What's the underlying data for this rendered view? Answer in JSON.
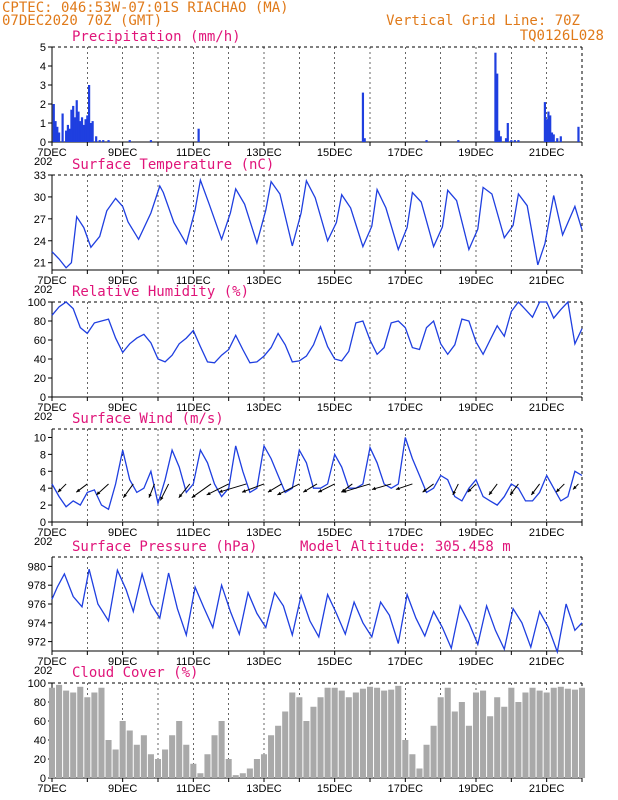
{
  "header": {
    "line1": "CPTEC:   046:53W-07:01S   RIACHAO (MA)",
    "line2": "07DEC2020 70Z (GMT)",
    "right1": "Vertical Grid Line: 70Z",
    "right2": "TQ0126L028"
  },
  "colors": {
    "header": "#e07a1a",
    "panel_title": "#e0157a",
    "series": "#1f3fe0",
    "cloud": "#a9a9a9",
    "wind_arrow": "#000000"
  },
  "x_axis": {
    "range_days": [
      7,
      22
    ],
    "tick_labels": [
      {
        "day": 7,
        "label": "7DEC"
      },
      {
        "day": 9,
        "label": "9DEC"
      },
      {
        "day": 11,
        "label": "11DEC"
      },
      {
        "day": 13,
        "label": "13DEC"
      },
      {
        "day": 15,
        "label": "15DEC"
      },
      {
        "day": 17,
        "label": "17DEC"
      },
      {
        "day": 19,
        "label": "19DEC"
      },
      {
        "day": 21,
        "label": "21DEC"
      }
    ],
    "year_stub": "202"
  },
  "chart_data": [
    {
      "id": "precip",
      "type": "bar",
      "title": "Precipitation (mm/h)",
      "ylim": [
        0,
        5
      ],
      "yticks": [
        0,
        1,
        2,
        3,
        4,
        5
      ],
      "grid": "dashed vertical at day boundaries, dashed horizontal top",
      "x": [
        7.05,
        7.1,
        7.15,
        7.2,
        7.3,
        7.4,
        7.45,
        7.5,
        7.55,
        7.6,
        7.65,
        7.7,
        7.75,
        7.8,
        7.85,
        7.9,
        7.95,
        8.0,
        8.05,
        8.1,
        8.15,
        8.25,
        8.35,
        8.45,
        8.6,
        9.2,
        9.8,
        11.15,
        15.8,
        15.85,
        17.6,
        18.5,
        19.55,
        19.6,
        19.65,
        19.7,
        19.85,
        19.9,
        20.0,
        20.1,
        20.2,
        20.95,
        21.0,
        21.05,
        21.1,
        21.15,
        21.2,
        21.3,
        21.4,
        21.9
      ],
      "values": [
        2.0,
        1.1,
        0.8,
        0.5,
        1.5,
        0.6,
        0.9,
        0.7,
        1.7,
        1.9,
        1.3,
        2.2,
        1.6,
        1.1,
        1.3,
        0.9,
        1.2,
        1.4,
        3.0,
        1.0,
        1.1,
        0.3,
        0.1,
        0.1,
        0.1,
        0.1,
        0.1,
        0.7,
        2.6,
        0.2,
        0.1,
        0.1,
        4.7,
        3.6,
        0.6,
        0.3,
        0.2,
        1.0,
        0.1,
        0.1,
        0.1,
        2.1,
        1.2,
        1.6,
        1.4,
        0.5,
        0.4,
        0.2,
        0.3,
        0.8
      ]
    },
    {
      "id": "temp",
      "type": "line",
      "title": "Surface Temperature (nC)",
      "ylim": [
        20,
        33
      ],
      "yticks": [
        21,
        24,
        27,
        30,
        33
      ],
      "x": [
        7.0,
        7.2,
        7.4,
        7.55,
        7.7,
        7.9,
        8.1,
        8.35,
        8.55,
        8.8,
        9.0,
        9.15,
        9.45,
        9.8,
        10.05,
        10.15,
        10.45,
        10.8,
        11.05,
        11.2,
        11.45,
        11.8,
        12.05,
        12.2,
        12.45,
        12.8,
        13.05,
        13.2,
        13.45,
        13.8,
        14.05,
        14.2,
        14.45,
        14.8,
        15.05,
        15.2,
        15.45,
        15.8,
        16.05,
        16.2,
        16.45,
        16.8,
        17.05,
        17.2,
        17.45,
        17.8,
        18.05,
        18.2,
        18.45,
        18.8,
        19.05,
        19.2,
        19.45,
        19.8,
        20.05,
        20.2,
        20.45,
        20.75,
        20.95,
        21.2,
        21.45,
        21.8,
        22.0
      ],
      "values": [
        22.5,
        21.5,
        20.3,
        21.0,
        27.3,
        25.8,
        23.1,
        24.6,
        28.1,
        29.8,
        28.7,
        26.6,
        24.2,
        27.8,
        31.5,
        30.6,
        26.5,
        23.6,
        28.2,
        32.3,
        29.0,
        24.2,
        27.8,
        31.1,
        29.0,
        23.7,
        28.2,
        32.1,
        30.4,
        23.3,
        27.8,
        32.2,
        29.9,
        24.0,
        26.5,
        30.3,
        28.5,
        23.2,
        26.0,
        31.0,
        28.5,
        22.8,
        25.8,
        30.6,
        29.3,
        23.2,
        25.9,
        30.9,
        29.5,
        22.8,
        25.6,
        31.3,
        30.4,
        24.4,
        26.1,
        30.4,
        28.8,
        20.7,
        23.6,
        30.2,
        24.8,
        28.7,
        25.5
      ]
    },
    {
      "id": "rh",
      "type": "line",
      "title": "Relative Humidity (%)",
      "ylim": [
        0,
        100
      ],
      "yticks": [
        0,
        20,
        40,
        60,
        80,
        100
      ],
      "x": [
        7.0,
        7.2,
        7.4,
        7.6,
        7.8,
        8.0,
        8.2,
        8.4,
        8.6,
        8.8,
        9.0,
        9.2,
        9.4,
        9.6,
        9.8,
        10.0,
        10.2,
        10.4,
        10.6,
        10.8,
        11.0,
        11.2,
        11.4,
        11.6,
        11.8,
        12.0,
        12.2,
        12.4,
        12.6,
        12.8,
        13.0,
        13.2,
        13.4,
        13.6,
        13.8,
        14.0,
        14.2,
        14.4,
        14.6,
        14.8,
        15.0,
        15.2,
        15.4,
        15.6,
        15.8,
        16.0,
        16.2,
        16.4,
        16.6,
        16.8,
        17.0,
        17.2,
        17.4,
        17.6,
        17.8,
        18.0,
        18.2,
        18.4,
        18.6,
        18.8,
        19.0,
        19.2,
        19.4,
        19.6,
        19.8,
        20.0,
        20.2,
        20.4,
        20.6,
        20.8,
        21.0,
        21.2,
        21.4,
        21.6,
        21.8,
        22.0
      ],
      "values": [
        86,
        95,
        100,
        93,
        73,
        67,
        78,
        80,
        82,
        62,
        47,
        56,
        62,
        66,
        57,
        40,
        37,
        44,
        56,
        62,
        70,
        53,
        37,
        36,
        44,
        50,
        65,
        50,
        36,
        37,
        43,
        52,
        67,
        55,
        37,
        38,
        43,
        55,
        74,
        53,
        40,
        38,
        48,
        78,
        80,
        60,
        45,
        52,
        78,
        80,
        73,
        52,
        50,
        73,
        80,
        56,
        45,
        55,
        82,
        80,
        58,
        45,
        60,
        75,
        64,
        90,
        100,
        92,
        84,
        100,
        100,
        83,
        92,
        100,
        56,
        72
      ]
    },
    {
      "id": "wind",
      "type": "line",
      "title": "Surface Wind (m/s)",
      "ylim": [
        0,
        11
      ],
      "yticks": [
        0,
        2,
        4,
        6,
        8,
        10
      ],
      "speed_x": [
        7.0,
        7.2,
        7.4,
        7.6,
        7.8,
        8.0,
        8.2,
        8.4,
        8.6,
        8.8,
        9.0,
        9.2,
        9.4,
        9.6,
        9.8,
        10.0,
        10.2,
        10.4,
        10.6,
        10.8,
        11.0,
        11.2,
        11.4,
        11.6,
        11.8,
        12.0,
        12.2,
        12.4,
        12.6,
        12.8,
        13.0,
        13.2,
        13.4,
        13.6,
        13.8,
        14.0,
        14.2,
        14.4,
        14.6,
        14.8,
        15.0,
        15.2,
        15.4,
        15.6,
        15.8,
        16.0,
        16.2,
        16.4,
        16.6,
        16.8,
        17.0,
        17.2,
        17.4,
        17.6,
        17.8,
        18.0,
        18.2,
        18.4,
        18.6,
        18.8,
        19.0,
        19.2,
        19.4,
        19.6,
        19.8,
        20.0,
        20.2,
        20.4,
        20.6,
        20.8,
        21.0,
        21.2,
        21.4,
        21.6,
        21.8,
        22.0
      ],
      "speed_values": [
        4.5,
        3.0,
        1.8,
        2.5,
        2.0,
        3.5,
        3.8,
        2.0,
        1.5,
        4.5,
        8.5,
        5.0,
        3.5,
        4.0,
        6.0,
        2.2,
        5.0,
        8.5,
        6.5,
        3.5,
        4.5,
        8.5,
        7.0,
        4.5,
        3.0,
        4.0,
        9.0,
        6.0,
        3.5,
        4.0,
        9.0,
        7.5,
        5.5,
        3.5,
        4.0,
        8.5,
        7.0,
        4.0,
        4.0,
        4.5,
        8.0,
        6.5,
        4.0,
        4.0,
        4.5,
        8.8,
        7.0,
        4.5,
        4.0,
        4.5,
        10.0,
        7.5,
        5.5,
        3.5,
        4.0,
        5.5,
        5.0,
        3.0,
        2.5,
        4.0,
        5.0,
        3.0,
        2.5,
        2.0,
        3.0,
        4.5,
        4.0,
        2.5,
        2.5,
        3.5,
        5.5,
        4.0,
        2.5,
        3.0,
        6.0,
        5.5
      ],
      "arrows": [
        {
          "day": 7.4,
          "u": -1.5,
          "v": -1.5
        },
        {
          "day": 8.0,
          "u": -2.0,
          "v": -1.5
        },
        {
          "day": 8.6,
          "u": -2.2,
          "v": -2.0
        },
        {
          "day": 9.3,
          "u": -1.8,
          "v": -2.5
        },
        {
          "day": 9.9,
          "u": -1.0,
          "v": -2.5
        },
        {
          "day": 10.3,
          "u": -1.5,
          "v": -3.0
        },
        {
          "day": 10.9,
          "u": -2.0,
          "v": -2.5
        },
        {
          "day": 11.5,
          "u": -3.5,
          "v": -2.5
        },
        {
          "day": 12.0,
          "u": -4.0,
          "v": -2.0
        },
        {
          "day": 12.5,
          "u": -5.0,
          "v": -1.5
        },
        {
          "day": 13.0,
          "u": -4.0,
          "v": -1.5
        },
        {
          "day": 13.5,
          "u": -2.5,
          "v": -1.5
        },
        {
          "day": 14.0,
          "u": -4.0,
          "v": -2.0
        },
        {
          "day": 14.5,
          "u": -2.5,
          "v": -1.5
        },
        {
          "day": 15.0,
          "u": -3.0,
          "v": -1.5
        },
        {
          "day": 15.5,
          "u": -2.0,
          "v": -1.5
        },
        {
          "day": 16.0,
          "u": -5.0,
          "v": -1.5
        },
        {
          "day": 16.6,
          "u": -3.5,
          "v": -1.0
        },
        {
          "day": 17.2,
          "u": -3.0,
          "v": -1.0
        },
        {
          "day": 17.8,
          "u": -2.0,
          "v": -1.5
        },
        {
          "day": 18.5,
          "u": -1.0,
          "v": -2.0
        },
        {
          "day": 19.0,
          "u": -1.5,
          "v": -1.5
        },
        {
          "day": 19.6,
          "u": -1.5,
          "v": -2.0
        },
        {
          "day": 20.2,
          "u": -1.5,
          "v": -2.0
        },
        {
          "day": 20.8,
          "u": -1.5,
          "v": -2.0
        },
        {
          "day": 21.5,
          "u": -1.5,
          "v": -1.5
        },
        {
          "day": 21.9,
          "u": -1.0,
          "v": -1.0
        }
      ]
    },
    {
      "id": "pres",
      "type": "line",
      "title": "Surface Pressure (hPa)",
      "annotation": "Model Altitude: 305.458  m",
      "ylim": [
        971,
        981
      ],
      "yticks": [
        972,
        974,
        976,
        978,
        980
      ],
      "x": [
        7.0,
        7.15,
        7.35,
        7.6,
        7.85,
        8.05,
        8.3,
        8.6,
        8.85,
        9.1,
        9.3,
        9.55,
        9.8,
        10.05,
        10.3,
        10.55,
        10.8,
        11.05,
        11.3,
        11.55,
        11.8,
        12.05,
        12.3,
        12.55,
        12.8,
        13.05,
        13.3,
        13.55,
        13.8,
        14.05,
        14.3,
        14.55,
        14.8,
        15.05,
        15.3,
        15.55,
        15.8,
        16.05,
        16.3,
        16.55,
        16.8,
        17.05,
        17.3,
        17.55,
        17.8,
        18.05,
        18.3,
        18.55,
        18.8,
        19.05,
        19.3,
        19.55,
        19.8,
        20.05,
        20.3,
        20.55,
        20.8,
        21.05,
        21.3,
        21.55,
        21.8,
        22.0
      ],
      "values": [
        976.5,
        977.8,
        979.2,
        976.8,
        975.7,
        979.7,
        976.0,
        974.2,
        979.6,
        977.5,
        975.2,
        979.2,
        976.0,
        974.5,
        979.3,
        975.5,
        972.7,
        977.8,
        975.6,
        973.5,
        978.0,
        975.2,
        972.8,
        977.2,
        975.0,
        973.5,
        977.2,
        975.8,
        972.7,
        976.9,
        974.2,
        972.5,
        977.0,
        975.0,
        972.8,
        976.2,
        974.0,
        972.5,
        976.2,
        974.8,
        971.8,
        977.0,
        974.5,
        972.6,
        975.2,
        973.5,
        971.3,
        975.8,
        974.0,
        971.7,
        975.8,
        973.2,
        971.2,
        975.5,
        974.0,
        971.4,
        975.2,
        973.5,
        970.9,
        976.0,
        973.2,
        974.0
      ]
    },
    {
      "id": "cloud",
      "type": "area",
      "title": "Cloud Cover (%)",
      "ylim": [
        0,
        100
      ],
      "yticks": [
        0,
        20,
        40,
        60,
        80,
        100
      ],
      "x": [
        7.0,
        7.2,
        7.4,
        7.6,
        7.8,
        8.0,
        8.2,
        8.4,
        8.6,
        8.8,
        9.0,
        9.2,
        9.4,
        9.6,
        9.8,
        10.0,
        10.2,
        10.4,
        10.6,
        10.8,
        11.0,
        11.2,
        11.4,
        11.6,
        11.8,
        12.0,
        12.2,
        12.4,
        12.6,
        12.8,
        13.0,
        13.2,
        13.4,
        13.6,
        13.8,
        14.0,
        14.2,
        14.4,
        14.6,
        14.8,
        15.0,
        15.2,
        15.4,
        15.6,
        15.8,
        16.0,
        16.2,
        16.4,
        16.6,
        16.8,
        17.0,
        17.2,
        17.4,
        17.6,
        17.8,
        18.0,
        18.2,
        18.4,
        18.6,
        18.8,
        19.0,
        19.2,
        19.4,
        19.6,
        19.8,
        20.0,
        20.2,
        20.4,
        20.6,
        20.8,
        21.0,
        21.2,
        21.4,
        21.6,
        21.8,
        22.0
      ],
      "values": [
        95,
        98,
        92,
        90,
        96,
        85,
        90,
        95,
        40,
        30,
        60,
        50,
        35,
        45,
        25,
        20,
        30,
        45,
        60,
        35,
        15,
        5,
        25,
        45,
        60,
        20,
        3,
        5,
        10,
        20,
        25,
        45,
        55,
        70,
        90,
        85,
        60,
        75,
        85,
        95,
        95,
        92,
        85,
        90,
        94,
        96,
        95,
        92,
        93,
        97,
        40,
        25,
        10,
        35,
        55,
        85,
        95,
        70,
        80,
        55,
        90,
        92,
        65,
        85,
        75,
        95,
        80,
        90,
        95,
        92,
        90,
        95,
        96,
        94,
        93,
        95
      ]
    }
  ]
}
